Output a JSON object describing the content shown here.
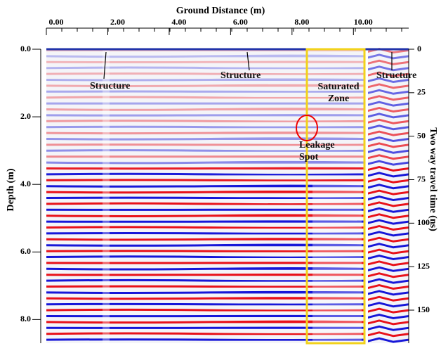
{
  "chart_data": {
    "type": "radargram",
    "xlabel": "Ground Distance (m)",
    "ylabel": "Depth (m)",
    "y2label": "Two way travel time (ns)",
    "xlim": [
      0,
      11.8
    ],
    "xticks": [
      {
        "value": 0,
        "label": "0.00"
      },
      {
        "value": 2,
        "label": "2.00"
      },
      {
        "value": 4,
        "label": "4.00"
      },
      {
        "value": 6,
        "label": "6.00"
      },
      {
        "value": 8,
        "label": "8.00"
      },
      {
        "value": 10,
        "label": "10.00"
      }
    ],
    "ylim": [
      0,
      8.7
    ],
    "yticks": [
      {
        "value": 0,
        "label": "0.0"
      },
      {
        "value": 2,
        "label": "2.0"
      },
      {
        "value": 4,
        "label": "4.0"
      },
      {
        "value": 6,
        "label": "6.0"
      },
      {
        "value": 8,
        "label": "8.0"
      }
    ],
    "y2lim": [
      0,
      169
    ],
    "y2ticks": [
      0,
      25,
      50,
      75,
      100,
      125,
      150
    ],
    "annotations": [
      "Structure",
      "Structure",
      "Saturated Zone",
      "Structure",
      "Leakage Spot"
    ]
  }
}
